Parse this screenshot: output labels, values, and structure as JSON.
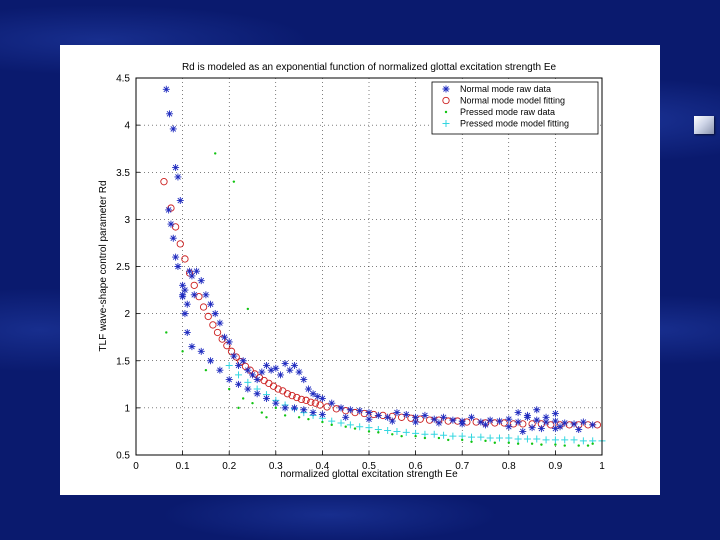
{
  "colors": {
    "background": "#0a1a6e",
    "normal_raw": "#1f2bbf",
    "normal_fit": "#cc2020",
    "pressed_raw": "#11c411",
    "pressed_fit": "#33d6e0"
  },
  "slide_icon": "bullet-square-icon",
  "chart_data": {
    "type": "scatter",
    "title": "Rd is modeled as an exponential function of normalized glottal excitation strength Ee",
    "xlabel": "normalized glottal excitation strength Ee",
    "ylabel": "TLF wave-shape control parameter Rd",
    "xlim": [
      0,
      1
    ],
    "ylim": [
      0.5,
      4.5
    ],
    "xticks": [
      "0",
      "0.1",
      "0.2",
      "0.3",
      "0.4",
      "0.5",
      "0.6",
      "0.7",
      "0.8",
      "0.9",
      "1"
    ],
    "yticks": [
      "0.5",
      "1",
      "1.5",
      "2",
      "2.5",
      "3",
      "3.5",
      "4",
      "4.5"
    ],
    "grid": true,
    "legend_position": "top-right",
    "series": [
      {
        "name": "Normal mode raw data",
        "marker": "*",
        "color": "#1f2bbf",
        "x": [
          0.065,
          0.072,
          0.08,
          0.085,
          0.09,
          0.095,
          0.07,
          0.075,
          0.08,
          0.085,
          0.09,
          0.1,
          0.1,
          0.105,
          0.11,
          0.115,
          0.12,
          0.125,
          0.13,
          0.14,
          0.15,
          0.16,
          0.17,
          0.18,
          0.19,
          0.2,
          0.21,
          0.22,
          0.23,
          0.24,
          0.25,
          0.26,
          0.27,
          0.28,
          0.29,
          0.3,
          0.31,
          0.32,
          0.33,
          0.34,
          0.35,
          0.36,
          0.37,
          0.38,
          0.39,
          0.4,
          0.42,
          0.44,
          0.46,
          0.48,
          0.5,
          0.52,
          0.54,
          0.56,
          0.58,
          0.6,
          0.62,
          0.64,
          0.66,
          0.68,
          0.7,
          0.72,
          0.74,
          0.76,
          0.78,
          0.8,
          0.82,
          0.84,
          0.86,
          0.88,
          0.9,
          0.92,
          0.94,
          0.96,
          0.98,
          0.1,
          0.105,
          0.11,
          0.12,
          0.14,
          0.16,
          0.18,
          0.2,
          0.22,
          0.24,
          0.26,
          0.28,
          0.3,
          0.32,
          0.34,
          0.36,
          0.38,
          0.4,
          0.45,
          0.5,
          0.55,
          0.6,
          0.65,
          0.7,
          0.75,
          0.8,
          0.85,
          0.9,
          0.95,
          0.82,
          0.84,
          0.86,
          0.88,
          0.9,
          0.83,
          0.87,
          0.91
        ],
        "y": [
          4.38,
          4.12,
          3.96,
          3.55,
          3.45,
          3.2,
          3.1,
          2.95,
          2.8,
          2.6,
          2.5,
          2.3,
          2.18,
          2.25,
          2.1,
          2.45,
          2.4,
          2.2,
          2.45,
          2.35,
          2.2,
          2.1,
          2.0,
          1.9,
          1.75,
          1.7,
          1.55,
          1.45,
          1.5,
          1.4,
          1.35,
          1.3,
          1.38,
          1.45,
          1.4,
          1.42,
          1.35,
          1.47,
          1.4,
          1.45,
          1.38,
          1.3,
          1.2,
          1.15,
          1.12,
          1.1,
          1.05,
          1.0,
          0.98,
          0.97,
          0.95,
          0.92,
          0.9,
          0.95,
          0.93,
          0.9,
          0.92,
          0.88,
          0.9,
          0.87,
          0.86,
          0.9,
          0.85,
          0.87,
          0.86,
          0.88,
          0.85,
          0.9,
          0.87,
          0.85,
          0.86,
          0.84,
          0.83,
          0.85,
          0.82,
          2.2,
          2.0,
          1.8,
          1.65,
          1.6,
          1.5,
          1.4,
          1.3,
          1.25,
          1.2,
          1.15,
          1.1,
          1.05,
          1.0,
          1.0,
          0.98,
          0.95,
          0.93,
          0.9,
          0.88,
          0.86,
          0.85,
          0.84,
          0.83,
          0.82,
          0.8,
          0.79,
          0.78,
          0.77,
          0.95,
          0.92,
          0.98,
          0.9,
          0.94,
          0.75,
          0.78,
          0.8
        ]
      },
      {
        "name": "Normal mode model fitting",
        "marker": "o",
        "color": "#cc2020",
        "x": [
          0.06,
          0.075,
          0.085,
          0.095,
          0.105,
          0.115,
          0.125,
          0.135,
          0.145,
          0.155,
          0.165,
          0.175,
          0.185,
          0.195,
          0.205,
          0.215,
          0.225,
          0.235,
          0.245,
          0.255,
          0.265,
          0.275,
          0.285,
          0.295,
          0.305,
          0.315,
          0.325,
          0.335,
          0.345,
          0.355,
          0.365,
          0.375,
          0.385,
          0.395,
          0.41,
          0.43,
          0.45,
          0.47,
          0.49,
          0.51,
          0.53,
          0.55,
          0.57,
          0.59,
          0.61,
          0.63,
          0.65,
          0.67,
          0.69,
          0.71,
          0.73,
          0.75,
          0.77,
          0.79,
          0.81,
          0.83,
          0.85,
          0.87,
          0.89,
          0.91,
          0.93,
          0.95,
          0.97,
          0.99
        ],
        "y": [
          3.4,
          3.12,
          2.92,
          2.74,
          2.58,
          2.43,
          2.3,
          2.18,
          2.07,
          1.97,
          1.88,
          1.8,
          1.73,
          1.66,
          1.6,
          1.54,
          1.49,
          1.44,
          1.4,
          1.36,
          1.32,
          1.29,
          1.26,
          1.23,
          1.2,
          1.18,
          1.15,
          1.13,
          1.11,
          1.09,
          1.08,
          1.06,
          1.05,
          1.03,
          1.01,
          0.99,
          0.97,
          0.95,
          0.94,
          0.93,
          0.92,
          0.91,
          0.9,
          0.89,
          0.88,
          0.87,
          0.87,
          0.86,
          0.86,
          0.85,
          0.85,
          0.84,
          0.84,
          0.84,
          0.83,
          0.83,
          0.83,
          0.83,
          0.82,
          0.82,
          0.82,
          0.82,
          0.82,
          0.82
        ]
      },
      {
        "name": "Pressed mode raw data",
        "marker": ".",
        "color": "#11c411",
        "x": [
          0.065,
          0.17,
          0.21,
          0.24,
          0.1,
          0.15,
          0.2,
          0.25,
          0.3,
          0.35,
          0.4,
          0.45,
          0.5,
          0.55,
          0.6,
          0.65,
          0.7,
          0.75,
          0.8,
          0.85,
          0.9,
          0.95,
          0.98,
          0.22,
          0.27,
          0.32,
          0.37,
          0.42,
          0.47,
          0.52,
          0.57,
          0.62,
          0.67,
          0.72,
          0.77,
          0.82,
          0.87,
          0.92,
          0.97,
          0.23,
          0.28
        ],
        "y": [
          1.8,
          3.7,
          3.4,
          2.05,
          1.6,
          1.4,
          1.2,
          1.05,
          1.0,
          0.9,
          0.85,
          0.8,
          0.75,
          0.72,
          0.7,
          0.68,
          0.66,
          0.65,
          0.63,
          0.62,
          0.61,
          0.6,
          0.62,
          1.0,
          0.95,
          0.92,
          0.88,
          0.82,
          0.78,
          0.74,
          0.7,
          0.68,
          0.66,
          0.64,
          0.63,
          0.62,
          0.61,
          0.6,
          0.6,
          1.1,
          0.9
        ]
      },
      {
        "name": "Pressed mode model fitting",
        "marker": "+",
        "color": "#33d6e0",
        "x": [
          0.2,
          0.22,
          0.24,
          0.26,
          0.28,
          0.3,
          0.32,
          0.34,
          0.36,
          0.38,
          0.4,
          0.42,
          0.44,
          0.46,
          0.48,
          0.5,
          0.52,
          0.54,
          0.56,
          0.58,
          0.6,
          0.62,
          0.64,
          0.66,
          0.68,
          0.7,
          0.72,
          0.74,
          0.76,
          0.78,
          0.8,
          0.82,
          0.84,
          0.86,
          0.88,
          0.9,
          0.92,
          0.94,
          0.96,
          0.98,
          1.0
        ],
        "y": [
          1.45,
          1.35,
          1.27,
          1.2,
          1.14,
          1.08,
          1.03,
          0.99,
          0.95,
          0.92,
          0.89,
          0.86,
          0.84,
          0.82,
          0.8,
          0.79,
          0.77,
          0.76,
          0.75,
          0.74,
          0.73,
          0.72,
          0.72,
          0.71,
          0.7,
          0.7,
          0.69,
          0.69,
          0.68,
          0.68,
          0.68,
          0.67,
          0.67,
          0.67,
          0.66,
          0.66,
          0.66,
          0.66,
          0.65,
          0.65,
          0.65
        ]
      }
    ]
  }
}
